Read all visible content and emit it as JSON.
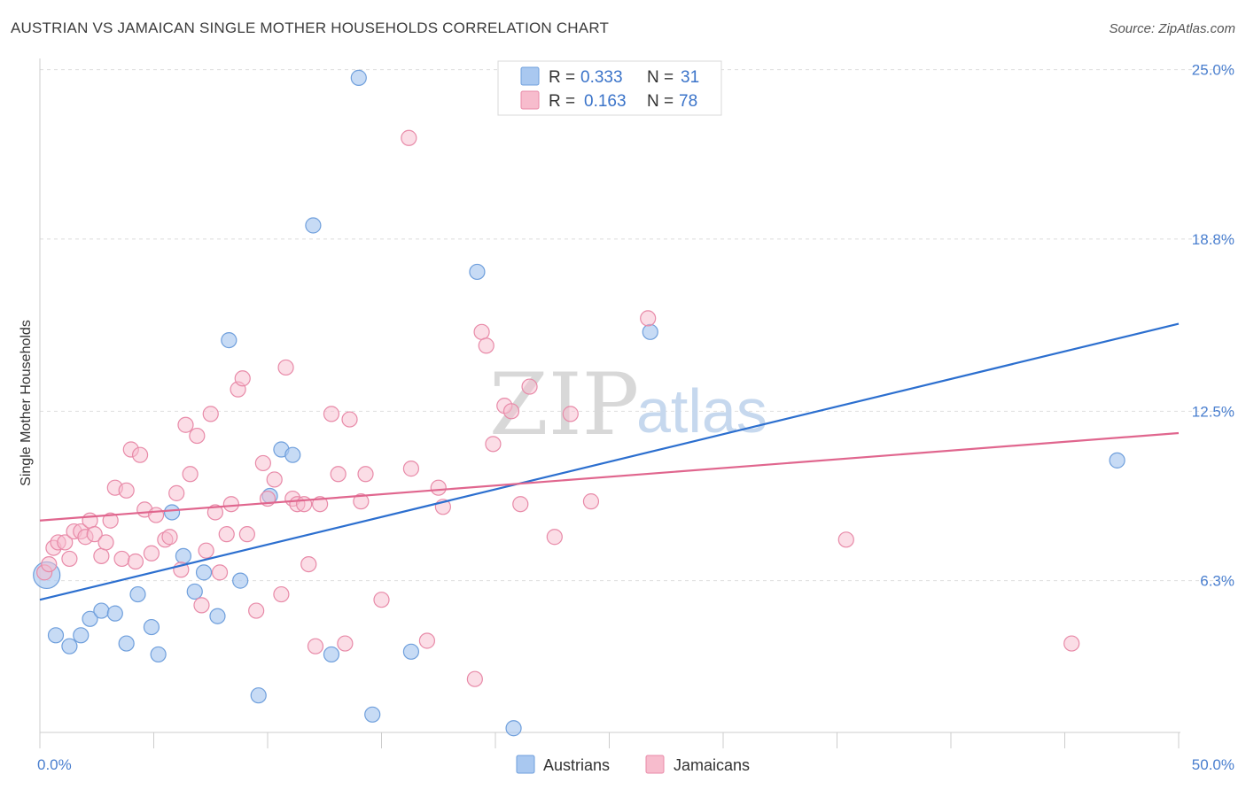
{
  "title": "AUSTRIAN VS JAMAICAN SINGLE MOTHER HOUSEHOLDS CORRELATION CHART",
  "source": "Source: ZipAtlas.com",
  "watermark": {
    "zip": "ZIP",
    "atlas": "atlas"
  },
  "legend": {
    "r_label": "R =",
    "n_label": "N =",
    "rows": [
      {
        "name": "Austrians",
        "r": "0.333",
        "n": "31",
        "color": "#a9c8f0",
        "stroke": "#6f9fdc"
      },
      {
        "name": "Jamaicans",
        "r": "0.163",
        "n": "78",
        "color": "#f7bccd",
        "stroke": "#e88aa8"
      }
    ]
  },
  "bottom_legend": [
    "Austrians",
    "Jamaicans"
  ],
  "chart_data": {
    "type": "scatter",
    "title": "AUSTRIAN VS JAMAICAN SINGLE MOTHER HOUSEHOLDS CORRELATION CHART",
    "xlabel": "",
    "ylabel": "Single Mother Households",
    "xlim": [
      0,
      50
    ],
    "ylim": [
      0,
      26
    ],
    "x_tick_labels": [
      "0.0%",
      "50.0%"
    ],
    "y_ticks": [
      6.3,
      12.5,
      18.8,
      25.0
    ],
    "y_tick_labels": [
      "6.3%",
      "12.5%",
      "18.8%",
      "25.0%"
    ],
    "grid": true,
    "series": [
      {
        "name": "Austrians",
        "color": "#a9c8f0",
        "stroke": "#6f9fdc",
        "line_color": "#2c6fcf",
        "trend": {
          "x": [
            0,
            50
          ],
          "y": [
            5.6,
            15.7
          ]
        },
        "points": [
          [
            0.3,
            6.5
          ],
          [
            0.7,
            4.3
          ],
          [
            1.3,
            3.9
          ],
          [
            1.8,
            4.3
          ],
          [
            2.2,
            4.9
          ],
          [
            2.7,
            5.2
          ],
          [
            3.3,
            5.1
          ],
          [
            3.8,
            4.0
          ],
          [
            4.3,
            5.8
          ],
          [
            4.9,
            4.6
          ],
          [
            5.2,
            3.6
          ],
          [
            5.8,
            8.8
          ],
          [
            6.3,
            7.2
          ],
          [
            6.8,
            5.9
          ],
          [
            7.2,
            6.6
          ],
          [
            7.8,
            5.0
          ],
          [
            8.3,
            15.1
          ],
          [
            8.8,
            6.3
          ],
          [
            9.6,
            2.1
          ],
          [
            10.1,
            9.4
          ],
          [
            10.6,
            11.1
          ],
          [
            11.1,
            10.9
          ],
          [
            12.0,
            19.3
          ],
          [
            12.8,
            3.6
          ],
          [
            14.0,
            24.7
          ],
          [
            14.6,
            1.4
          ],
          [
            16.3,
            3.7
          ],
          [
            19.2,
            17.6
          ],
          [
            20.8,
            0.9
          ],
          [
            26.8,
            15.4
          ],
          [
            47.3,
            10.7
          ]
        ]
      },
      {
        "name": "Jamaicans",
        "color": "#f7bccd",
        "stroke": "#e88aa8",
        "line_color": "#e0668e",
        "trend": {
          "x": [
            0,
            50
          ],
          "y": [
            8.5,
            11.7
          ]
        },
        "points": [
          [
            0.2,
            6.6
          ],
          [
            0.4,
            6.9
          ],
          [
            0.6,
            7.5
          ],
          [
            0.8,
            7.7
          ],
          [
            1.1,
            7.7
          ],
          [
            1.3,
            7.1
          ],
          [
            1.5,
            8.1
          ],
          [
            1.8,
            8.1
          ],
          [
            2.0,
            7.9
          ],
          [
            2.2,
            8.5
          ],
          [
            2.4,
            8.0
          ],
          [
            2.7,
            7.2
          ],
          [
            2.9,
            7.7
          ],
          [
            3.1,
            8.5
          ],
          [
            3.3,
            9.7
          ],
          [
            3.6,
            7.1
          ],
          [
            3.8,
            9.6
          ],
          [
            4.0,
            11.1
          ],
          [
            4.2,
            7.0
          ],
          [
            4.4,
            10.9
          ],
          [
            4.6,
            8.9
          ],
          [
            4.9,
            7.3
          ],
          [
            5.1,
            8.7
          ],
          [
            5.5,
            7.8
          ],
          [
            5.7,
            7.9
          ],
          [
            6.0,
            9.5
          ],
          [
            6.2,
            6.7
          ],
          [
            6.4,
            12.0
          ],
          [
            6.6,
            10.2
          ],
          [
            6.9,
            11.6
          ],
          [
            7.1,
            5.4
          ],
          [
            7.3,
            7.4
          ],
          [
            7.5,
            12.4
          ],
          [
            7.7,
            8.8
          ],
          [
            7.9,
            6.6
          ],
          [
            8.2,
            8.0
          ],
          [
            8.4,
            9.1
          ],
          [
            8.7,
            13.3
          ],
          [
            8.9,
            13.7
          ],
          [
            9.1,
            8.0
          ],
          [
            9.5,
            5.2
          ],
          [
            9.8,
            10.6
          ],
          [
            10.0,
            9.3
          ],
          [
            10.3,
            10.0
          ],
          [
            10.6,
            5.8
          ],
          [
            10.8,
            14.1
          ],
          [
            11.1,
            9.3
          ],
          [
            11.3,
            9.1
          ],
          [
            11.6,
            9.1
          ],
          [
            11.8,
            6.9
          ],
          [
            12.1,
            3.9
          ],
          [
            12.3,
            9.1
          ],
          [
            12.8,
            12.4
          ],
          [
            13.1,
            10.2
          ],
          [
            13.4,
            4.0
          ],
          [
            13.6,
            12.2
          ],
          [
            14.1,
            9.2
          ],
          [
            14.3,
            10.2
          ],
          [
            15.0,
            5.6
          ],
          [
            16.3,
            10.4
          ],
          [
            17.0,
            4.1
          ],
          [
            17.5,
            9.7
          ],
          [
            17.7,
            9.0
          ],
          [
            19.1,
            2.7
          ],
          [
            19.4,
            15.4
          ],
          [
            19.6,
            14.9
          ],
          [
            19.9,
            11.3
          ],
          [
            20.4,
            12.7
          ],
          [
            20.7,
            12.5
          ],
          [
            21.1,
            9.1
          ],
          [
            21.5,
            13.4
          ],
          [
            22.6,
            7.9
          ],
          [
            23.3,
            12.4
          ],
          [
            24.2,
            9.2
          ],
          [
            26.7,
            15.9
          ],
          [
            35.4,
            7.8
          ],
          [
            45.3,
            4.0
          ],
          [
            16.2,
            22.5
          ]
        ]
      }
    ]
  }
}
